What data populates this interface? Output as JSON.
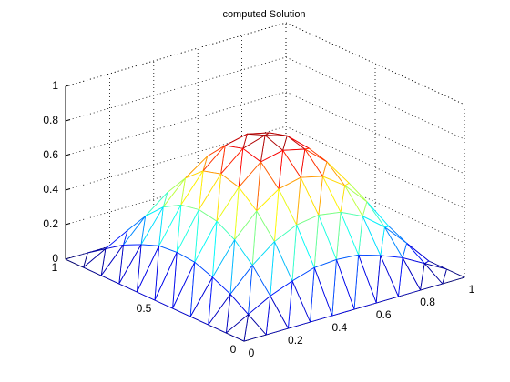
{
  "chart_data": {
    "type": "mesh",
    "title": "computed Solution",
    "x": [
      0,
      0.1,
      0.2,
      0.3,
      0.4,
      0.5,
      0.6,
      0.7,
      0.8,
      0.9,
      1
    ],
    "y": [
      0,
      0.1,
      0.2,
      0.3,
      0.4,
      0.5,
      0.6,
      0.7,
      0.8,
      0.9,
      1
    ],
    "z": [
      [
        0,
        0,
        0,
        0,
        0,
        0,
        0,
        0,
        0,
        0,
        0
      ],
      [
        0,
        0.07,
        0.14,
        0.19,
        0.23,
        0.24,
        0.23,
        0.19,
        0.14,
        0.07,
        0
      ],
      [
        0,
        0.14,
        0.27,
        0.37,
        0.43,
        0.45,
        0.43,
        0.37,
        0.27,
        0.14,
        0
      ],
      [
        0,
        0.19,
        0.37,
        0.5,
        0.59,
        0.62,
        0.59,
        0.5,
        0.37,
        0.19,
        0
      ],
      [
        0,
        0.23,
        0.43,
        0.59,
        0.7,
        0.73,
        0.7,
        0.59,
        0.43,
        0.23,
        0
      ],
      [
        0,
        0.24,
        0.45,
        0.62,
        0.73,
        0.77,
        0.73,
        0.62,
        0.45,
        0.24,
        0
      ],
      [
        0,
        0.23,
        0.43,
        0.59,
        0.7,
        0.73,
        0.7,
        0.59,
        0.43,
        0.23,
        0
      ],
      [
        0,
        0.19,
        0.37,
        0.5,
        0.59,
        0.62,
        0.59,
        0.5,
        0.37,
        0.19,
        0
      ],
      [
        0,
        0.14,
        0.27,
        0.37,
        0.43,
        0.45,
        0.43,
        0.37,
        0.27,
        0.14,
        0
      ],
      [
        0,
        0.07,
        0.14,
        0.19,
        0.23,
        0.24,
        0.23,
        0.19,
        0.14,
        0.07,
        0
      ],
      [
        0,
        0,
        0,
        0,
        0,
        0,
        0,
        0,
        0,
        0,
        0
      ]
    ],
    "xlim": [
      0,
      1
    ],
    "ylim": [
      0,
      1
    ],
    "zlim": [
      0,
      1
    ],
    "xticks": [
      0,
      0.2,
      0.4,
      0.6,
      0.8,
      1
    ],
    "yticks": [
      0,
      0.5,
      1
    ],
    "zticks": [
      0,
      0.2,
      0.4,
      0.6,
      0.8,
      1
    ],
    "colormap": "jet",
    "grid": true
  }
}
